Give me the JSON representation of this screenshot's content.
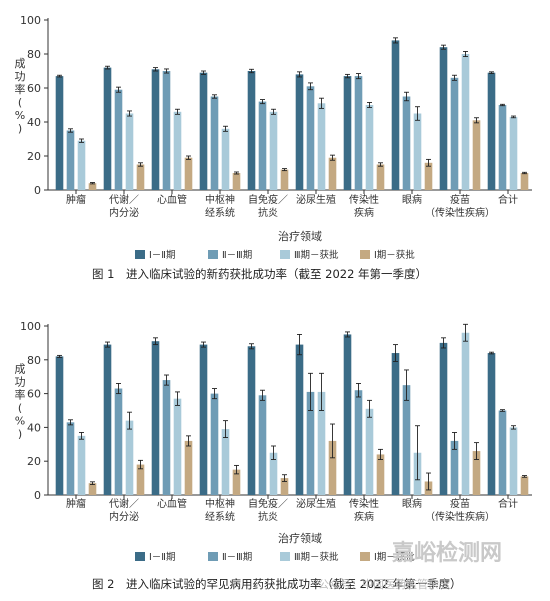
{
  "colors": [
    "#3b6c87",
    "#6f9cb5",
    "#a9cad9",
    "#c4a982"
  ],
  "legend": [
    "Ⅰ－Ⅱ期",
    "Ⅱ－Ⅲ期",
    "Ⅲ期－获批",
    "Ⅰ期－获批"
  ],
  "watermark": {
    "main": "嘉峪检测网",
    "sub": "公众号：中国医药监管杂志"
  },
  "chart_data": [
    {
      "type": "bar",
      "caption": "图 1　进入临床试验的新药获批成功率（截至 2022 年第一季度）",
      "ylabel": "成功率（%）",
      "xlabel": "治疗领域",
      "ylim": [
        0,
        100
      ],
      "yticks": [
        0,
        20,
        40,
        60,
        80,
        100
      ],
      "categories": [
        "肿瘤",
        "代谢／内分泌",
        "心血管",
        "中枢神经系统",
        "自免疫／抗炎",
        "泌尿生殖",
        "传染性疾病",
        "眼病",
        "疫苗（传染性疾病）",
        "合计"
      ],
      "series": [
        {
          "name": "Ⅰ－Ⅱ期",
          "values": [
            67,
            72,
            71,
            69,
            70,
            68,
            67,
            88,
            84,
            69
          ],
          "err": [
            0.5,
            0.8,
            1,
            1,
            1,
            1.5,
            1,
            1.5,
            1.2,
            0.5
          ]
        },
        {
          "name": "Ⅱ－Ⅲ期",
          "values": [
            35,
            59,
            70,
            55,
            52,
            61,
            67,
            55,
            66,
            50
          ],
          "err": [
            1,
            1.5,
            1.2,
            1,
            1.2,
            2,
            1.5,
            2.5,
            1.5,
            0.4
          ]
        },
        {
          "name": "Ⅲ期－获批",
          "values": [
            29,
            45,
            46,
            36,
            46,
            51,
            50,
            45,
            80,
            43
          ],
          "err": [
            1,
            1.5,
            1.5,
            1.5,
            1.5,
            3,
            1.5,
            4,
            1.5,
            0.5
          ]
        },
        {
          "name": "Ⅰ期－获批",
          "values": [
            4,
            15,
            19,
            10,
            12,
            19,
            15,
            16,
            41,
            10
          ],
          "err": [
            0.4,
            1,
            1,
            0.6,
            0.6,
            1.5,
            1,
            2,
            1.5,
            0.4
          ]
        }
      ]
    },
    {
      "type": "bar",
      "caption": "图 2　进入临床试验的罕见病用药获批成功率（截至 2022 年第一季度）",
      "ylabel": "成功率（%）",
      "xlabel": "治疗领域",
      "ylim": [
        0,
        100
      ],
      "yticks": [
        0,
        20,
        40,
        60,
        80,
        100
      ],
      "categories": [
        "肿瘤",
        "代谢／内分泌",
        "心血管",
        "中枢神经系统",
        "自免疫／抗炎",
        "泌尿生殖",
        "传染性疾病",
        "眼病",
        "疫苗（传染性疾病）",
        "合计"
      ],
      "series": [
        {
          "name": "Ⅰ－Ⅱ期",
          "values": [
            82,
            89,
            91,
            89,
            88,
            89,
            95,
            84,
            90,
            84
          ],
          "err": [
            0.6,
            1.5,
            2,
            1.5,
            1.5,
            6,
            1.5,
            5,
            3,
            0.5
          ]
        },
        {
          "name": "Ⅱ－Ⅲ期",
          "values": [
            43,
            63,
            68,
            60,
            59,
            61,
            62,
            65,
            32,
            50
          ],
          "err": [
            1.5,
            3,
            3,
            3,
            3,
            11,
            4,
            9,
            5,
            0.5
          ]
        },
        {
          "name": "Ⅲ期－获批",
          "values": [
            35,
            44,
            57,
            39,
            25,
            61,
            51,
            25,
            96,
            40
          ],
          "err": [
            2,
            5,
            4,
            5,
            4,
            11,
            5,
            16,
            5,
            1
          ]
        },
        {
          "name": "Ⅰ期－获批",
          "values": [
            7,
            18,
            32,
            15,
            10,
            32,
            24,
            8,
            26,
            11
          ],
          "err": [
            0.8,
            2.5,
            3,
            2.5,
            2,
            10,
            3,
            5,
            5,
            0.5
          ]
        }
      ]
    }
  ]
}
